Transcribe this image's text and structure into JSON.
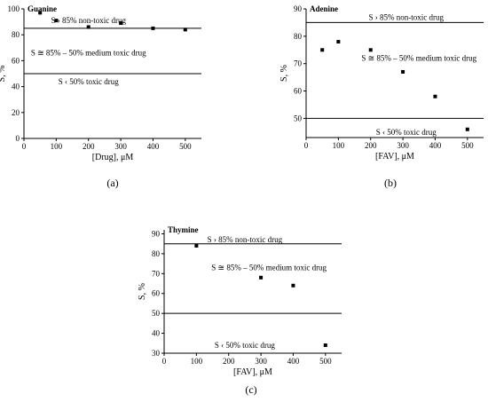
{
  "chart_data": [
    {
      "type": "scatter",
      "panel": "(a)",
      "title": "Guanine",
      "xlabel": "[Drug], μM",
      "ylabel": "S, %",
      "xlim": [
        0,
        550
      ],
      "ylim": [
        0,
        100
      ],
      "xticks": [
        0,
        100,
        200,
        300,
        400,
        500
      ],
      "yticks": [
        0,
        20,
        40,
        60,
        80,
        100
      ],
      "x": [
        50,
        100,
        200,
        300,
        400,
        500
      ],
      "y": [
        97,
        91,
        86,
        89,
        85,
        84
      ],
      "thresholds": [
        85,
        50
      ],
      "annotations": [
        {
          "text": "S › 85% non-toxic drug",
          "x": 200,
          "y": 91
        },
        {
          "text": "S ≅ 85% – 50% medium toxic drug",
          "x": 200,
          "y": 66
        },
        {
          "text": "S ‹ 50% toxic drug",
          "x": 200,
          "y": 44
        }
      ]
    },
    {
      "type": "scatter",
      "panel": "(b)",
      "title": "Adenine",
      "xlabel": "[FAV], μM",
      "ylabel": "S, %",
      "xlim": [
        0,
        550
      ],
      "ylim": [
        43,
        90
      ],
      "xticks": [
        0,
        100,
        200,
        300,
        400,
        500
      ],
      "yticks": [
        50,
        60,
        70,
        80,
        90
      ],
      "x": [
        50,
        100,
        200,
        300,
        400,
        500
      ],
      "y": [
        75,
        78,
        75,
        67,
        58,
        46
      ],
      "thresholds": [
        85,
        50
      ],
      "annotations": [
        {
          "text": "S › 85% non-toxic drug",
          "x": 310,
          "y": 87
        },
        {
          "text": "S ≅ 85% – 50% medium toxic drug",
          "x": 350,
          "y": 72
        },
        {
          "text": "S ‹ 50% toxic drug",
          "x": 310,
          "y": 45
        }
      ]
    },
    {
      "type": "scatter",
      "panel": "(c)",
      "title": "Thymine",
      "xlabel": "[FAV], μM",
      "ylabel": "S, %",
      "xlim": [
        0,
        550
      ],
      "ylim": [
        30,
        92
      ],
      "xticks": [
        0,
        100,
        200,
        300,
        400,
        500
      ],
      "yticks": [
        30,
        40,
        50,
        60,
        70,
        80,
        90
      ],
      "x": [
        100,
        300,
        400,
        500
      ],
      "y": [
        84,
        68,
        64,
        34
      ],
      "thresholds": [
        85,
        50
      ],
      "annotations": [
        {
          "text": "S › 85% non-toxic drug",
          "x": 250,
          "y": 87
        },
        {
          "text": "S ≅ 85% – 50% medium toxic drug",
          "x": 325,
          "y": 73
        },
        {
          "text": "S ‹ 50% toxic drug",
          "x": 250,
          "y": 34
        }
      ]
    }
  ]
}
